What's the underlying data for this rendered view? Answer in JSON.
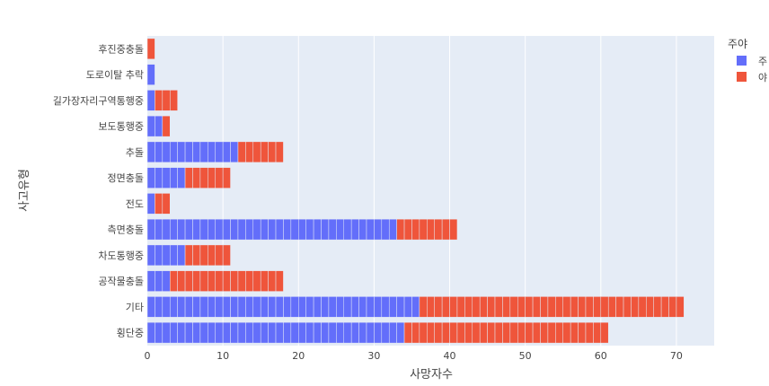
{
  "chart_data": {
    "type": "bar",
    "orientation": "horizontal",
    "barmode": "stack",
    "categories": [
      "횡단중",
      "기타",
      "공작물충돌",
      "차도통행중",
      "측면충돌",
      "전도",
      "정면충돌",
      "추돌",
      "보도통행중",
      "길가장자리구역통행중",
      "도로이탈 추락",
      "후진중충돌"
    ],
    "series": [
      {
        "name": "주",
        "color": "#636efa",
        "values": [
          34,
          36,
          3,
          5,
          33,
          1,
          5,
          12,
          2,
          1,
          1,
          0
        ]
      },
      {
        "name": "야",
        "color": "#ef553b",
        "values": [
          27,
          35,
          15,
          6,
          8,
          2,
          6,
          6,
          1,
          3,
          0,
          1
        ]
      }
    ],
    "xlabel": "사망자수",
    "ylabel": "사고유형",
    "xlim": [
      0,
      75
    ],
    "xticks": [
      0,
      10,
      20,
      30,
      40,
      50,
      60,
      70
    ],
    "legend": {
      "title": "주야",
      "position": "top-right"
    },
    "grid": true,
    "plot_background": "#e5ecf6"
  }
}
